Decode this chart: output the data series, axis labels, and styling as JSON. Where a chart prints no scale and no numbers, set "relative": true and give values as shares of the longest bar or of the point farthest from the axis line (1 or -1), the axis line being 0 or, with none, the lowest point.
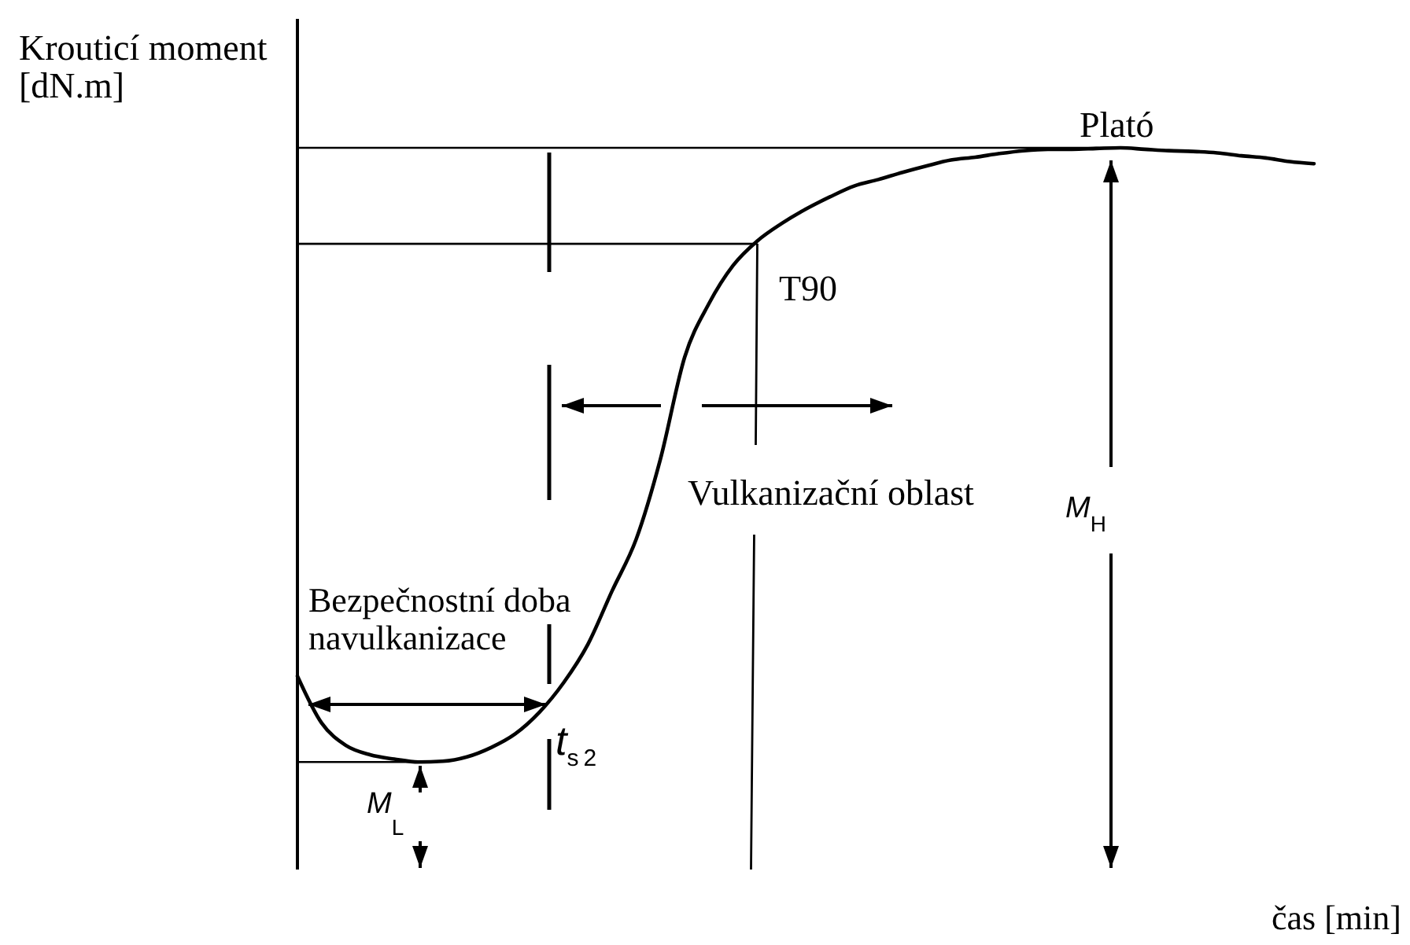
{
  "chart_data": {
    "type": "line",
    "relative": true,
    "tick_labels": false,
    "xlabel": "čas [min]",
    "ylabel": "Krouticí moment [dN.m]",
    "categories": [
      null,
      null,
      null,
      null,
      null,
      null,
      null,
      null,
      null,
      null,
      null,
      null,
      null,
      null,
      null,
      null,
      null,
      null,
      null,
      null,
      null,
      null,
      null,
      null,
      null,
      null,
      null,
      null,
      null,
      null,
      null,
      null,
      null,
      null,
      null,
      null,
      null,
      null,
      null,
      null,
      null,
      null,
      null
    ],
    "series": [
      {
        "color": "#000000",
        "values": [
          0.268,
          0.203,
          0.172,
          0.159,
          0.153,
          0.149,
          0.15,
          0.156,
          0.169,
          0.188,
          0.218,
          0.259,
          0.312,
          0.386,
          0.458,
          0.569,
          0.71,
          0.784,
          0.837,
          0.871,
          0.895,
          0.915,
          0.932,
          0.947,
          0.956,
          0.966,
          0.975,
          0.983,
          0.987,
          0.992,
          0.996,
          0.998,
          0.998,
          0.999,
          1,
          0.998,
          0.996,
          0.995,
          0.993,
          0.989,
          0.986,
          0.981,
          0.978
        ]
      }
    ],
    "ref_lines": [
      {
        "axis": "y",
        "value": 0.149,
        "color": "#000000"
      },
      {
        "axis": "y",
        "value": 0.867,
        "color": "#000000"
      },
      {
        "axis": "y",
        "value": 1,
        "color": "#000000"
      }
    ],
    "annotations": [
      "Plató",
      "T90",
      "Vulkanizační oblast",
      "Bezpečnostní doba navulkanizace",
      "t$_{s2}$",
      "M$_{L}$",
      "M$_{H}$"
    ]
  }
}
